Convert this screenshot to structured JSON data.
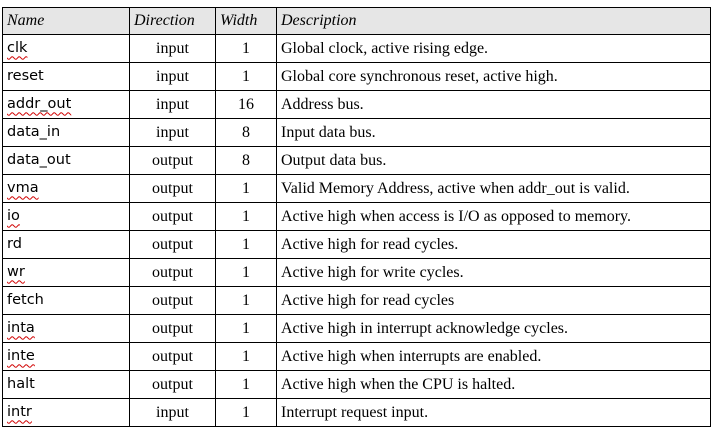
{
  "headers": {
    "name": "Name",
    "direction": "Direction",
    "width": "Width",
    "description": "Description"
  },
  "rows": [
    {
      "name": "clk",
      "direction": "input",
      "width": "1",
      "description": "Global clock, active rising edge."
    },
    {
      "name": "reset",
      "direction": "input",
      "width": "1",
      "description": "Global core synchronous reset, active high."
    },
    {
      "name": "addr_out",
      "direction": "input",
      "width": "16",
      "description": "Address bus."
    },
    {
      "name": "data_in",
      "direction": "input",
      "width": "8",
      "description": "Input data bus."
    },
    {
      "name": "data_out",
      "direction": "output",
      "width": "8",
      "description": "Output data bus."
    },
    {
      "name": "vma",
      "direction": "output",
      "width": "1",
      "description": "Valid Memory Address, active when addr_out is valid."
    },
    {
      "name": "io",
      "direction": "output",
      "width": "1",
      "description": "Active high when access is I/O as opposed to memory."
    },
    {
      "name": "rd",
      "direction": "output",
      "width": "1",
      "description": "Active high for read cycles."
    },
    {
      "name": "wr",
      "direction": "output",
      "width": "1",
      "description": "Active high for write cycles."
    },
    {
      "name": "fetch",
      "direction": "output",
      "width": "1",
      "description": "Active high for read cycles"
    },
    {
      "name": "inta",
      "direction": "output",
      "width": "1",
      "description": "Active high in interrupt acknowledge cycles."
    },
    {
      "name": "inte",
      "direction": "output",
      "width": "1",
      "description": "Active high when interrupts are enabled."
    },
    {
      "name": "halt",
      "direction": "output",
      "width": "1",
      "description": "Active high when the CPU is halted."
    },
    {
      "name": "intr",
      "direction": "input",
      "width": "1",
      "description": "Interrupt request input."
    }
  ]
}
